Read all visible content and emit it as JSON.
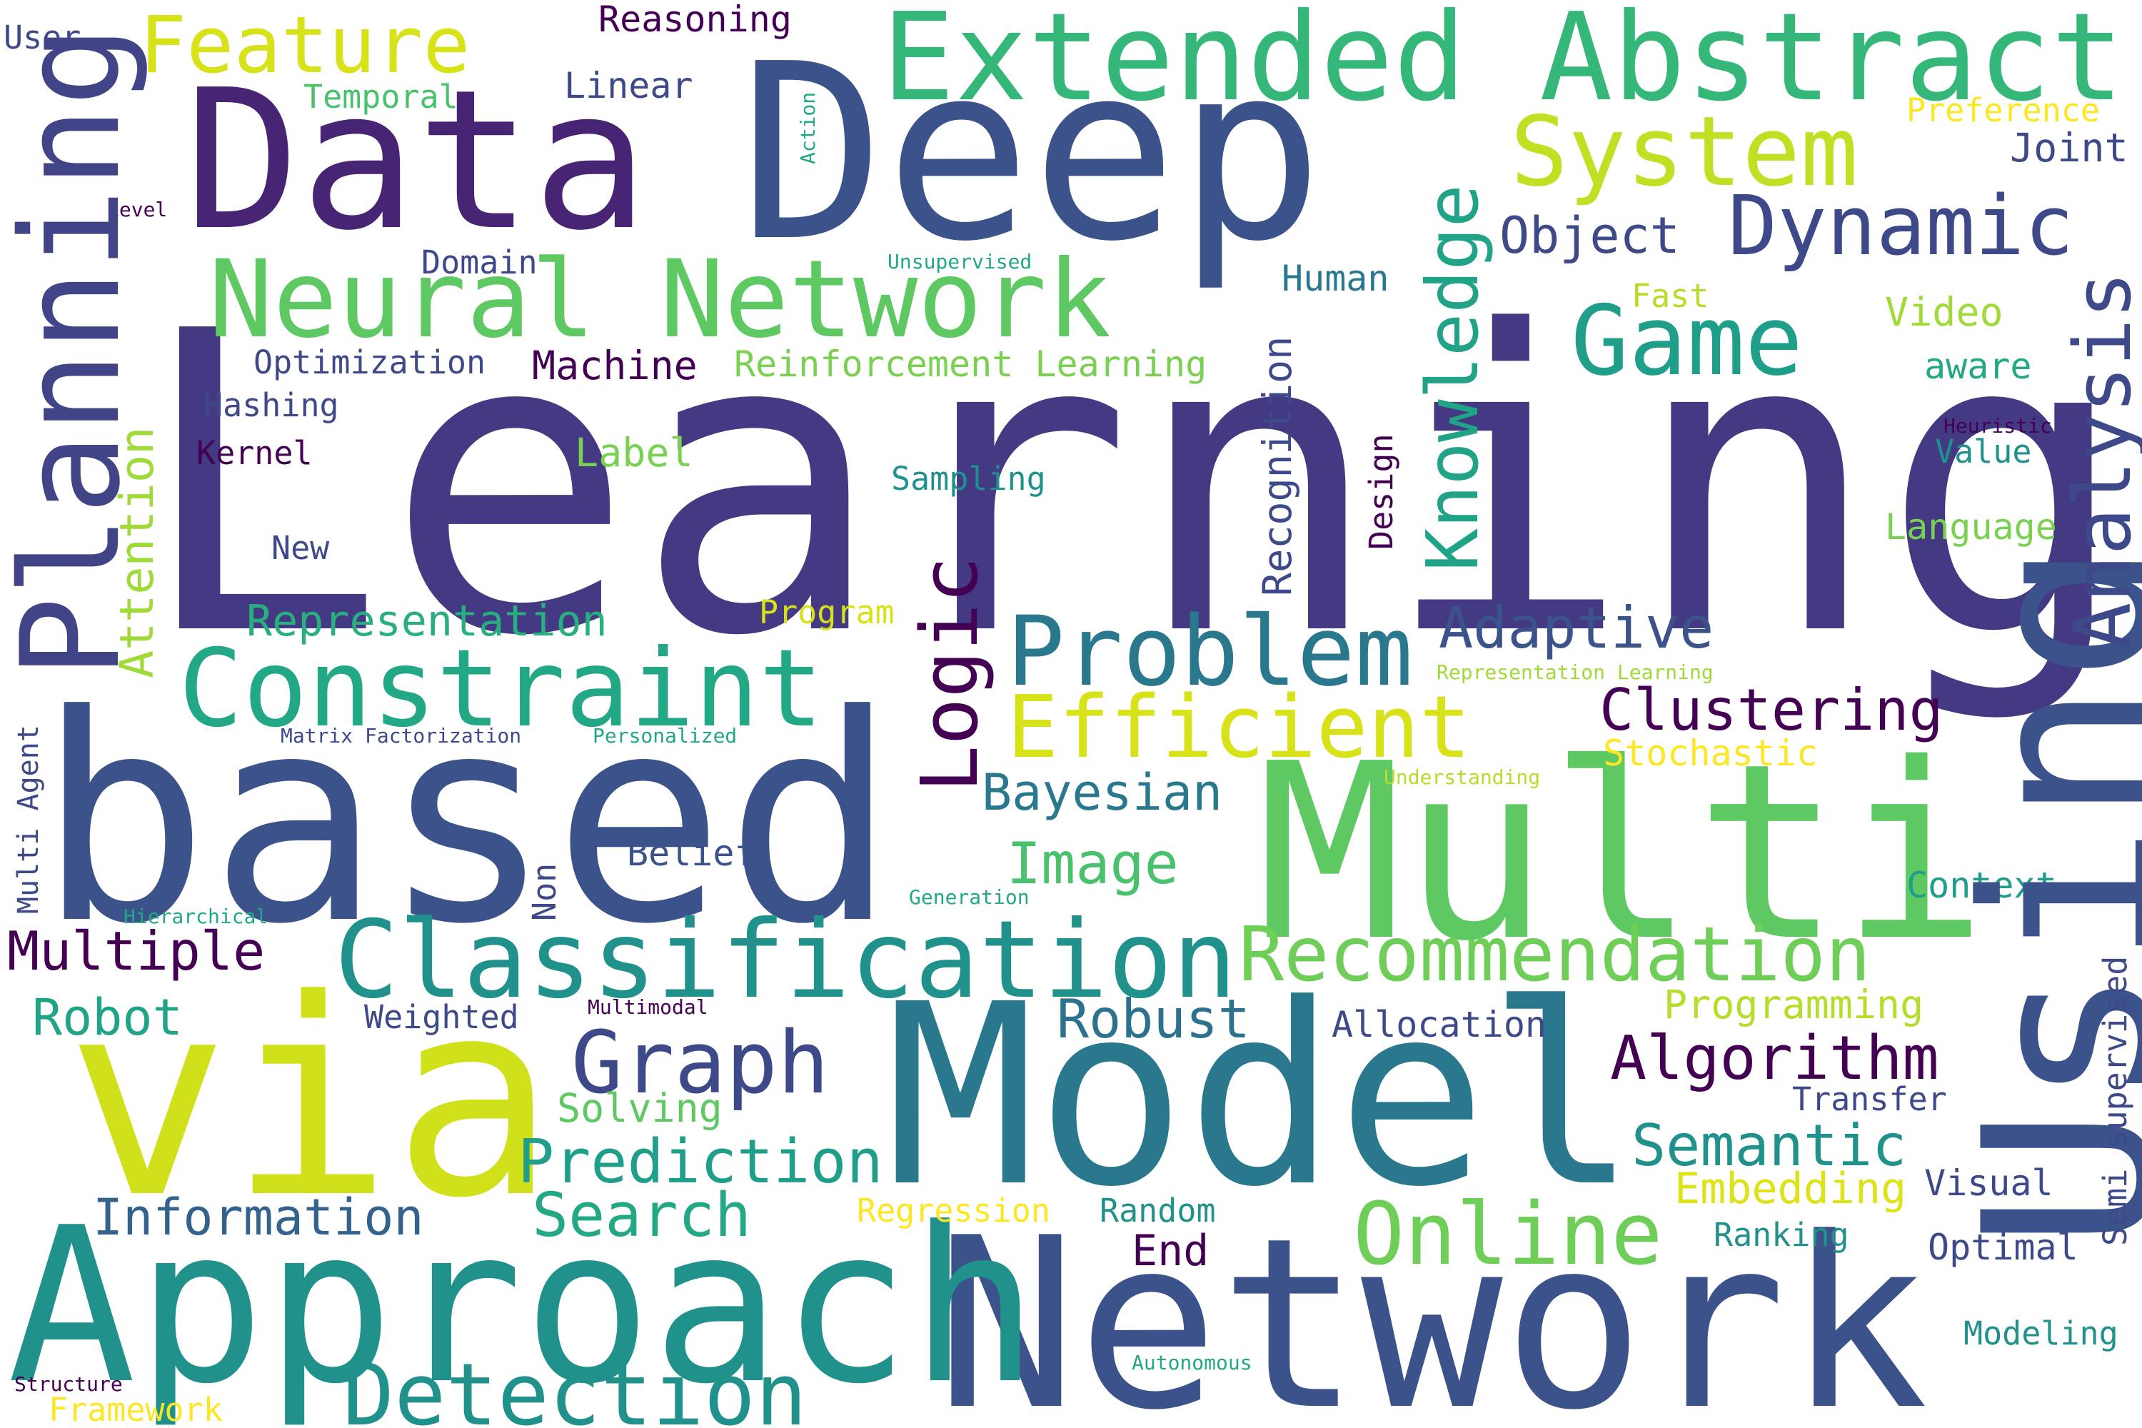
{
  "words": [
    {
      "text": "Learning",
      "color": "#443a83"
    },
    {
      "text": "based",
      "color": "#3b528b"
    },
    {
      "text": "Multi",
      "color": "#5ec962"
    },
    {
      "text": "Model",
      "color": "#2a788e"
    },
    {
      "text": "Network",
      "color": "#3b528b"
    },
    {
      "text": "Approach",
      "color": "#21918c"
    },
    {
      "text": "via",
      "color": "#d0e11c"
    },
    {
      "text": "Deep",
      "color": "#3b528b"
    },
    {
      "text": "Data",
      "color": "#482475"
    },
    {
      "text": "Using",
      "color": "#3b528b"
    },
    {
      "text": "Extended Abstract",
      "color": "#35b779"
    },
    {
      "text": "Neural Network",
      "color": "#5ec962"
    },
    {
      "text": "Classification",
      "color": "#21918c"
    },
    {
      "text": "Planning",
      "color": "#414487"
    },
    {
      "text": "Constraint",
      "color": "#22a884"
    },
    {
      "text": "System",
      "color": "#c2df23"
    },
    {
      "text": "Game",
      "color": "#1f9e89"
    },
    {
      "text": "Dynamic",
      "color": "#3e4989"
    },
    {
      "text": "Problem",
      "color": "#2a788e"
    },
    {
      "text": "Recommendation",
      "color": "#6ece58"
    },
    {
      "text": "Efficient",
      "color": "#d8e219"
    },
    {
      "text": "Detection",
      "color": "#21918c"
    },
    {
      "text": "Graph",
      "color": "#3e4989"
    },
    {
      "text": "Online",
      "color": "#6ece58"
    },
    {
      "text": "Feature",
      "color": "#d8e219"
    },
    {
      "text": "Knowledge",
      "color": "#20a386"
    },
    {
      "text": "Logic",
      "color": "#440154"
    },
    {
      "text": "Analysis",
      "color": "#3e4989"
    },
    {
      "text": "Algorithm",
      "color": "#440154"
    },
    {
      "text": "Prediction",
      "color": "#1f9e89"
    },
    {
      "text": "Search",
      "color": "#22a884"
    },
    {
      "text": "Adaptive",
      "color": "#3b528b"
    },
    {
      "text": "Clustering",
      "color": "#440154"
    },
    {
      "text": "Semantic",
      "color": "#21918c"
    },
    {
      "text": "Information",
      "color": "#33638d"
    },
    {
      "text": "Image",
      "color": "#4ac16d"
    },
    {
      "text": "Robust",
      "color": "#2c728e"
    },
    {
      "text": "Multiple",
      "color": "#440154"
    },
    {
      "text": "Bayesian",
      "color": "#2a788e"
    },
    {
      "text": "Attention",
      "color": "#a0da39"
    },
    {
      "text": "Representation",
      "color": "#29af7f"
    },
    {
      "text": "Reinforcement Learning",
      "color": "#7ad151"
    },
    {
      "text": "Machine",
      "color": "#440154"
    },
    {
      "text": "Object",
      "color": "#3e4989"
    },
    {
      "text": "Robot",
      "color": "#20a386"
    },
    {
      "text": "Embedding",
      "color": "#dde318"
    },
    {
      "text": "Programming",
      "color": "#b5de2b"
    },
    {
      "text": "Solving",
      "color": "#5ec962"
    },
    {
      "text": "Optimization",
      "color": "#3e4989"
    },
    {
      "text": "Recognition",
      "color": "#3e4989"
    },
    {
      "text": "Reasoning",
      "color": "#440154"
    },
    {
      "text": "Linear",
      "color": "#3e4989"
    },
    {
      "text": "Temporal",
      "color": "#4ac16d"
    },
    {
      "text": "Human",
      "color": "#2a788e"
    },
    {
      "text": "Domain",
      "color": "#3e4989"
    },
    {
      "text": "Hashing",
      "color": "#3e4989"
    },
    {
      "text": "Kernel",
      "color": "#440154"
    },
    {
      "text": "Label",
      "color": "#7ad151"
    },
    {
      "text": "Sampling",
      "color": "#21918c"
    },
    {
      "text": "New",
      "color": "#3e4989"
    },
    {
      "text": "Program",
      "color": "#d8e219"
    },
    {
      "text": "Design",
      "color": "#440154"
    },
    {
      "text": "Video",
      "color": "#a0da39"
    },
    {
      "text": "aware",
      "color": "#22a884"
    },
    {
      "text": "Fast",
      "color": "#b5de2b"
    },
    {
      "text": "Value",
      "color": "#21918c"
    },
    {
      "text": "Language",
      "color": "#7ad151"
    },
    {
      "text": "Preference",
      "color": "#fde725"
    },
    {
      "text": "Joint",
      "color": "#3e4989"
    },
    {
      "text": "User",
      "color": "#3e4989"
    },
    {
      "text": "Stochastic",
      "color": "#fde725"
    },
    {
      "text": "Belief",
      "color": "#3b528b"
    },
    {
      "text": "Non",
      "color": "#3e4989"
    },
    {
      "text": "Weighted",
      "color": "#3e4989"
    },
    {
      "text": "Allocation",
      "color": "#3e4989"
    },
    {
      "text": "Transfer",
      "color": "#3e4989"
    },
    {
      "text": "Visual",
      "color": "#3e4989"
    },
    {
      "text": "Ranking",
      "color": "#21918c"
    },
    {
      "text": "Optimal",
      "color": "#3e4989"
    },
    {
      "text": "Modeling",
      "color": "#21918c"
    },
    {
      "text": "Context",
      "color": "#1f9e89"
    },
    {
      "text": "Semi supervised",
      "color": "#3e4989"
    },
    {
      "text": "Multi Agent",
      "color": "#3e4989"
    },
    {
      "text": "Regression",
      "color": "#fde725"
    },
    {
      "text": "Random",
      "color": "#21918c"
    },
    {
      "text": "End",
      "color": "#440154"
    },
    {
      "text": "Framework",
      "color": "#fde725"
    },
    {
      "text": "Structure",
      "color": "#440154"
    },
    {
      "text": "Matrix Factorization",
      "color": "#3e4989"
    },
    {
      "text": "Personalized",
      "color": "#22a884"
    },
    {
      "text": "Understanding",
      "color": "#b5de2b"
    },
    {
      "text": "Representation Learning",
      "color": "#a0da39"
    },
    {
      "text": "Unsupervised",
      "color": "#22a884"
    },
    {
      "text": "Action",
      "color": "#22a884"
    },
    {
      "text": "Level",
      "color": "#440154"
    },
    {
      "text": "Heuristic",
      "color": "#440154"
    },
    {
      "text": "Hierarchical",
      "color": "#22a884"
    },
    {
      "text": "Generation",
      "color": "#22a884"
    },
    {
      "text": "Multimodal",
      "color": "#440154"
    },
    {
      "text": "Autonomous",
      "color": "#22a884"
    }
  ]
}
